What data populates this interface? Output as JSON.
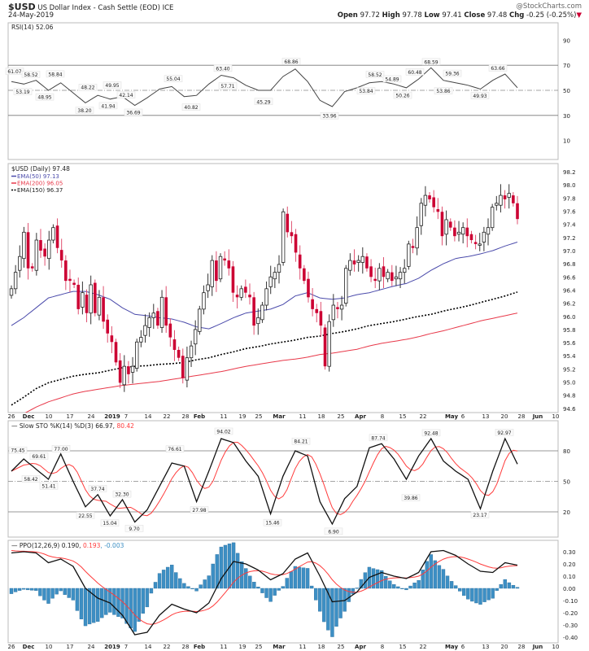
{
  "header": {
    "symbol": "$USD",
    "name": "US Dollar Index - Cash Settle (EOD) ICE",
    "date": "24-May-2019",
    "credit": "@StockCharts.com",
    "open_label": "Open",
    "open": "97.72",
    "high_label": "High",
    "high": "97.78",
    "low_label": "Low",
    "low": "97.41",
    "close_label": "Close",
    "close": "97.48",
    "chg_label": "Chg",
    "chg": "-0.25 (-0.25%)",
    "chg_icon": "down-triangle-icon"
  },
  "colors": {
    "down_candle": "#cc0033",
    "ema50": "#4b4bab",
    "ema200": "#e8394a",
    "ema150": "#000000",
    "sto_d": "#ff3b3b",
    "ppo_signal": "#ff3b3b",
    "ppo_hist": "#3d8fc4"
  },
  "chart_data": [
    {
      "type": "line",
      "panel": "rsi",
      "legend": "RSI(14) 52.06",
      "ylim": [
        0,
        100
      ],
      "yticks": [
        "90",
        "70",
        "50",
        "30",
        "10"
      ],
      "reference_lines": [
        70,
        50,
        30
      ],
      "values": [
        57,
        55,
        58,
        50,
        56,
        48,
        40,
        46,
        43,
        45,
        38,
        44,
        51,
        53,
        45,
        46,
        55,
        62,
        60,
        54,
        50,
        50,
        61,
        67,
        57,
        42,
        37,
        49,
        52,
        56,
        57,
        55,
        52,
        59,
        68,
        58,
        56,
        54,
        51,
        58,
        63,
        52.06
      ],
      "annotations": [
        "61.07",
        "53.19",
        "58.52",
        "48.95",
        "58.84",
        "38.20",
        "48.22",
        "41.94",
        "49.95",
        "42.14",
        "36.69",
        "55.04",
        "40.82",
        "63.40",
        "57.71",
        "45.29",
        "68.86",
        "33.96",
        "58.52",
        "53.84",
        "54.89",
        "50.26",
        "60.48",
        "68.59",
        "53.86",
        "59.36",
        "49.93",
        "63.66"
      ]
    },
    {
      "type": "candlestick",
      "panel": "price",
      "legend": "$USD (Daily) 97.48",
      "ylim": [
        94.6,
        98.3
      ],
      "yticks": [
        "98.2",
        "98.0",
        "97.8",
        "97.6",
        "97.4",
        "97.2",
        "97.0",
        "96.8",
        "96.6",
        "96.4",
        "96.2",
        "96.0",
        "95.8",
        "95.6",
        "95.4",
        "95.2",
        "95.0",
        "94.8",
        "94.6"
      ],
      "closes": [
        96.42,
        96.67,
        96.91,
        97.28,
        96.73,
        96.73,
        97.16,
        97.0,
        96.91,
        97.16,
        97.35,
        97.04,
        96.85,
        96.54,
        96.54,
        96.48,
        96.11,
        96.36,
        96.05,
        96.48,
        96.05,
        96.29,
        95.92,
        95.74,
        95.61,
        95.3,
        94.99,
        95.24,
        95.12,
        95.24,
        95.61,
        95.68,
        95.86,
        95.98,
        96.05,
        95.86,
        96.29,
        95.86,
        95.68,
        95.49,
        95.37,
        95.06,
        95.37,
        95.55,
        95.8,
        96.11,
        96.36,
        96.48,
        96.85,
        96.54,
        96.91,
        96.85,
        96.73,
        96.36,
        96.29,
        96.42,
        96.36,
        96.29,
        95.86,
        95.98,
        96.17,
        96.42,
        96.6,
        96.67,
        96.79,
        97.59,
        97.28,
        97.22,
        96.97,
        96.73,
        96.54,
        96.29,
        96.11,
        96.05,
        95.86,
        95.24,
        95.92,
        96.17,
        96.11,
        96.17,
        96.73,
        96.85,
        96.79,
        96.85,
        96.91,
        96.73,
        96.6,
        96.54,
        96.73,
        96.6,
        96.67,
        96.54,
        96.6,
        96.67,
        96.73,
        97.1,
        97.04,
        97.35,
        97.72,
        97.84,
        97.78,
        97.66,
        97.59,
        97.22,
        97.47,
        97.35,
        97.22,
        97.28,
        97.35,
        97.22,
        97.16,
        97.1,
        97.1,
        97.28,
        97.35,
        97.66,
        97.72,
        97.84,
        97.78,
        97.87,
        97.72,
        97.48
      ],
      "series": [
        {
          "name": "EMA(50) 97.13",
          "values": [
            95.86,
            95.98,
            96.13,
            96.28,
            96.33,
            96.38,
            96.38,
            96.33,
            96.26,
            96.13,
            96.03,
            96.01,
            95.98,
            95.96,
            95.91,
            95.84,
            95.81,
            95.89,
            95.98,
            96.05,
            96.08,
            96.11,
            96.18,
            96.31,
            96.36,
            96.28,
            96.26,
            96.28,
            96.33,
            96.36,
            96.41,
            96.46,
            96.5,
            96.58,
            96.7,
            96.8,
            96.88,
            96.91,
            96.95,
            97.0,
            97.07,
            97.13
          ]
        },
        {
          "name": "EMA(200) 96.05",
          "values": [
            94.45,
            94.52,
            94.62,
            94.7,
            94.76,
            94.82,
            94.86,
            94.89,
            94.92,
            94.95,
            94.97,
            94.99,
            95.01,
            95.04,
            95.07,
            95.1,
            95.13,
            95.16,
            95.2,
            95.24,
            95.27,
            95.3,
            95.33,
            95.35,
            95.38,
            95.42,
            95.44,
            95.47,
            95.5,
            95.55,
            95.59,
            95.62,
            95.65,
            95.69,
            95.74,
            95.78,
            95.83,
            95.88,
            95.93,
            95.97,
            96.01,
            96.05
          ]
        },
        {
          "name": "EMA(150) 96.37",
          "values": [
            94.65,
            94.77,
            94.9,
            94.99,
            95.04,
            95.09,
            95.12,
            95.14,
            95.18,
            95.22,
            95.24,
            95.25,
            95.27,
            95.28,
            95.3,
            95.34,
            95.37,
            95.42,
            95.46,
            95.51,
            95.54,
            95.58,
            95.61,
            95.64,
            95.68,
            95.7,
            95.74,
            95.77,
            95.81,
            95.86,
            95.89,
            95.92,
            95.96,
            96.0,
            96.03,
            96.08,
            96.12,
            96.16,
            96.21,
            96.26,
            96.31,
            96.37
          ]
        }
      ]
    },
    {
      "type": "line",
      "panel": "slow-sto",
      "legend_prefix": "Slow STO %K(14) %D(3) 66.97, ",
      "legend_d": "80.42",
      "ylim": [
        0,
        100
      ],
      "yticks": [
        "80",
        "50",
        "20"
      ],
      "reference_lines": [
        80,
        50,
        20
      ],
      "k_values": [
        60,
        72,
        62,
        52,
        77,
        50,
        25,
        37,
        16,
        32,
        10,
        22,
        45,
        68,
        65,
        30,
        60,
        92,
        88,
        70,
        55,
        18,
        55,
        80,
        75,
        30,
        8,
        33,
        45,
        83,
        87,
        72,
        52,
        75,
        92,
        70,
        60,
        52,
        23,
        60,
        92,
        66.97
      ],
      "annotations": [
        "75.45",
        "58.42",
        "69.61",
        "51.41",
        "77.00",
        "22.55",
        "37.74",
        "15.04",
        "32.30",
        "9.70",
        "76.61",
        "27.98",
        "94.02",
        "15.46",
        "84.21",
        "6.90",
        "87.74",
        "39.86",
        "92.48",
        "23.17",
        "92.97"
      ]
    },
    {
      "type": "line",
      "panel": "ppo",
      "legend_ppo": "PPO(12,26,9) 0.190",
      "legend_signal": "0.193",
      "legend_hist": "-0.003",
      "ylim": [
        -0.42,
        0.33
      ],
      "yticks": [
        "0.30",
        "0.20",
        "0.10",
        "0.00",
        "-0.10",
        "-0.20",
        "-0.30",
        "-0.40"
      ],
      "values": [
        0.29,
        0.3,
        0.29,
        0.21,
        0.24,
        0.18,
        0.0,
        -0.08,
        -0.12,
        -0.22,
        -0.38,
        -0.36,
        -0.22,
        -0.13,
        -0.17,
        -0.2,
        -0.12,
        0.08,
        0.22,
        0.2,
        0.15,
        0.07,
        0.12,
        0.24,
        0.29,
        0.1,
        -0.11,
        -0.1,
        -0.03,
        0.09,
        0.13,
        0.1,
        0.08,
        0.13,
        0.3,
        0.31,
        0.27,
        0.2,
        0.14,
        0.13,
        0.21,
        0.19
      ]
    }
  ],
  "x_axis": {
    "ticks": [
      {
        "label": "26",
        "bold": false
      },
      {
        "label": "Dec",
        "bold": true
      },
      {
        "label": "10",
        "bold": false
      },
      {
        "label": "17",
        "bold": false
      },
      {
        "label": "24",
        "bold": false
      },
      {
        "label": "2019",
        "bold": true
      },
      {
        "label": "7",
        "bold": false
      },
      {
        "label": "14",
        "bold": false
      },
      {
        "label": "22",
        "bold": false
      },
      {
        "label": "28",
        "bold": false
      },
      {
        "label": "Feb",
        "bold": true
      },
      {
        "label": "11",
        "bold": false
      },
      {
        "label": "19",
        "bold": false
      },
      {
        "label": "25",
        "bold": false
      },
      {
        "label": "Mar",
        "bold": true
      },
      {
        "label": "11",
        "bold": false
      },
      {
        "label": "18",
        "bold": false
      },
      {
        "label": "25",
        "bold": false
      },
      {
        "label": "Apr",
        "bold": true
      },
      {
        "label": "8",
        "bold": false
      },
      {
        "label": "15",
        "bold": false
      },
      {
        "label": "22",
        "bold": false
      },
      {
        "label": "May",
        "bold": true
      },
      {
        "label": "6",
        "bold": false
      },
      {
        "label": "13",
        "bold": false
      },
      {
        "label": "20",
        "bold": false
      },
      {
        "label": "28",
        "bold": false
      },
      {
        "label": "Jun",
        "bold": true
      },
      {
        "label": "10",
        "bold": false
      }
    ]
  }
}
